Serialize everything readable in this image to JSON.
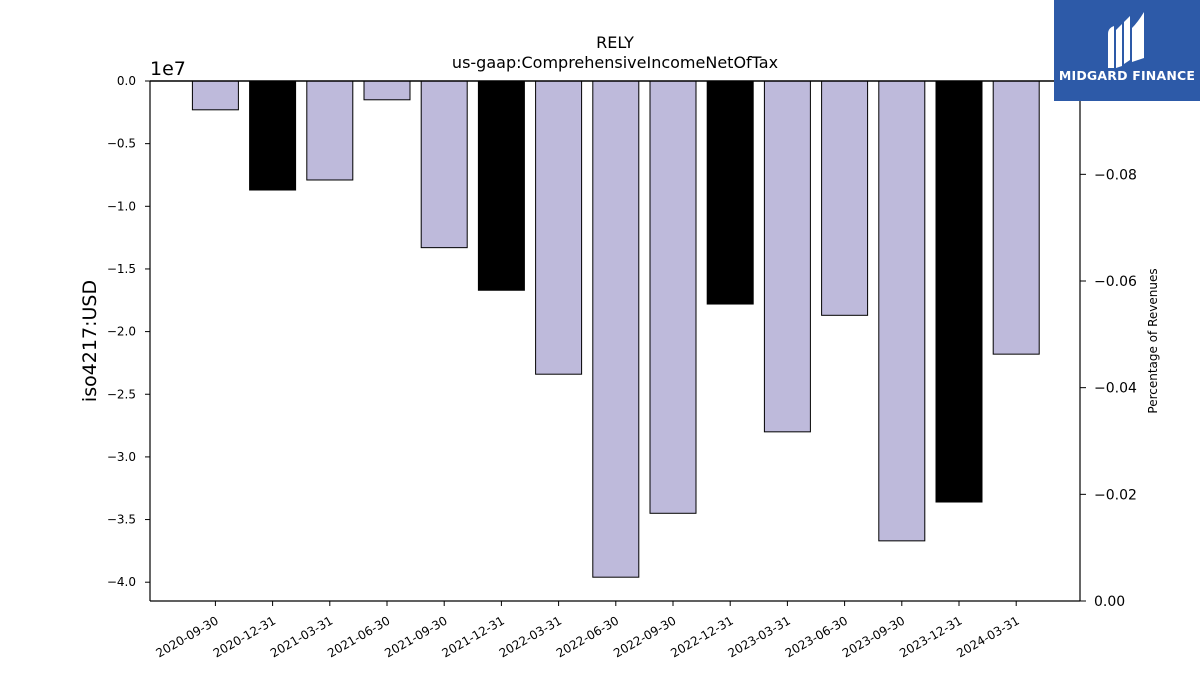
{
  "logo": {
    "text": "MIDGARD FINANCE"
  },
  "chart_data": {
    "type": "bar",
    "title": "RELY",
    "subtitle": "us-gaap:ComprehensiveIncomeNetOfTax",
    "ylabel": "iso4217:USD",
    "y_offset_label": "1e7",
    "y2label": "Percentage of Revenues",
    "categories": [
      "2020-09-30",
      "2020-12-31",
      "2021-03-31",
      "2021-06-30",
      "2021-09-30",
      "2021-12-31",
      "2022-03-31",
      "2022-06-30",
      "2022-09-30",
      "2022-12-31",
      "2023-03-31",
      "2023-06-30",
      "2023-09-30",
      "2023-12-31",
      "2024-03-31"
    ],
    "values": [
      -2300000,
      -8700000,
      -7900000,
      -1500000,
      -13300000,
      -16700000,
      -23400000,
      -39600000,
      -34500000,
      -17800000,
      -28000000,
      -18700000,
      -36700000,
      -33600000,
      -21800000
    ],
    "bar_colors": [
      "#bebadb",
      "#000000",
      "#bebadb",
      "#bebadb",
      "#bebadb",
      "#000000",
      "#bebadb",
      "#bebadb",
      "#bebadb",
      "#000000",
      "#bebadb",
      "#bebadb",
      "#bebadb",
      "#000000",
      "#bebadb"
    ],
    "ylim": [
      -41500000,
      0
    ],
    "yticks": [
      {
        "value": 0,
        "label": "0.0"
      },
      {
        "value": -5000000,
        "label": "−0.5"
      },
      {
        "value": -10000000,
        "label": "−1.0"
      },
      {
        "value": -15000000,
        "label": "−1.5"
      },
      {
        "value": -20000000,
        "label": "−2.0"
      },
      {
        "value": -25000000,
        "label": "−2.5"
      },
      {
        "value": -30000000,
        "label": "−3.0"
      },
      {
        "value": -35000000,
        "label": "−3.5"
      },
      {
        "value": -40000000,
        "label": "−4.0"
      }
    ],
    "y2lim": [
      0,
      -0.0975
    ],
    "y2ticks": [
      {
        "value": 0,
        "label": "0.00"
      },
      {
        "value": -0.02,
        "label": "−0.02"
      },
      {
        "value": -0.04,
        "label": "−0.04"
      },
      {
        "value": -0.06,
        "label": "−0.06"
      },
      {
        "value": -0.08,
        "label": "−0.08"
      }
    ],
    "grid": false,
    "legend": "none"
  }
}
